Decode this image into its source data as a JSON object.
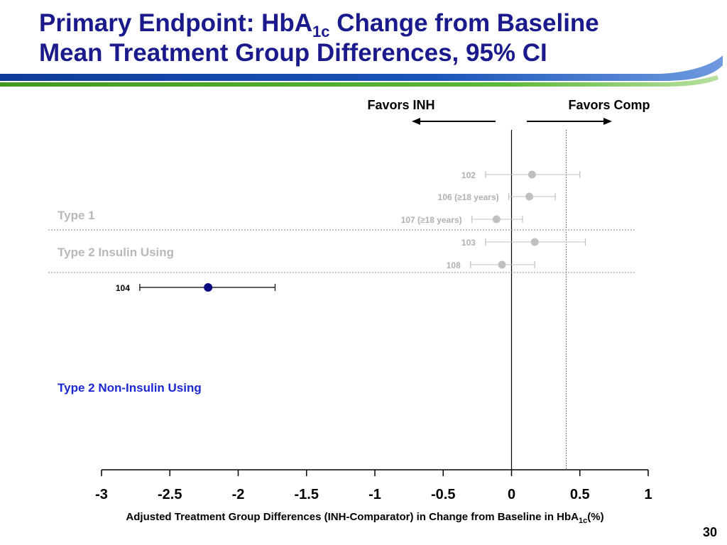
{
  "slide": {
    "title_line1_pre": "Primary Endpoint: HbA",
    "title_line1_sub": "1c",
    "title_line1_post": " Change from Baseline",
    "title_line2": "Mean Treatment Group Differences, 95% CI",
    "page_number": "30"
  },
  "colors": {
    "title": "#1a1a8c",
    "banner_blue": "#1a4fb4",
    "banner_green": "#4caa2c",
    "grey_marker": "#c0c0c0",
    "grey_label": "#b0b0b0",
    "highlight_marker": "#0a0a80",
    "group_label_grey": "#b8b8b8",
    "group_label_blue": "#1e28d2"
  },
  "chart_data": {
    "type": "forest",
    "xlim": [
      -3,
      1
    ],
    "ticks": [
      -3,
      -2.5,
      -2,
      -1.5,
      -1,
      -0.5,
      0,
      0.5,
      1
    ],
    "tick_labels": [
      "-3",
      "-2.5",
      "-2",
      "-1.5",
      "-1",
      "-0.5",
      "0",
      "0.5",
      "1"
    ],
    "reference_line": 0,
    "dotted_reference": 0.4,
    "xlabel_pre": "Adjusted Treatment Group Differences (INH-Comparator) in Change from Baseline in HbA",
    "xlabel_sub": "1c",
    "xlabel_post": "(%)",
    "favors_left": "Favors INH",
    "favors_right": "Favors Comp",
    "groups": [
      {
        "label": "Type 1",
        "style": "grey"
      },
      {
        "label": "Type 2 Insulin Using",
        "style": "grey"
      },
      {
        "label": "Type 2 Non-Insulin Using",
        "style": "blue"
      }
    ],
    "studies": [
      {
        "label": "102",
        "estimate": 0.15,
        "lower": -0.19,
        "upper": 0.5,
        "style": "grey"
      },
      {
        "label": "106 (≥18 years)",
        "estimate": 0.13,
        "lower": -0.02,
        "upper": 0.32,
        "style": "grey"
      },
      {
        "label": "107 (≥18 years)",
        "estimate": -0.11,
        "lower": -0.29,
        "upper": 0.08,
        "style": "grey"
      },
      {
        "label": "103",
        "estimate": 0.17,
        "lower": -0.19,
        "upper": 0.54,
        "style": "grey"
      },
      {
        "label": "108",
        "estimate": -0.07,
        "lower": -0.3,
        "upper": 0.17,
        "style": "grey"
      },
      {
        "label": "104",
        "estimate": -2.22,
        "lower": -2.72,
        "upper": -1.73,
        "style": "highlight"
      }
    ]
  }
}
